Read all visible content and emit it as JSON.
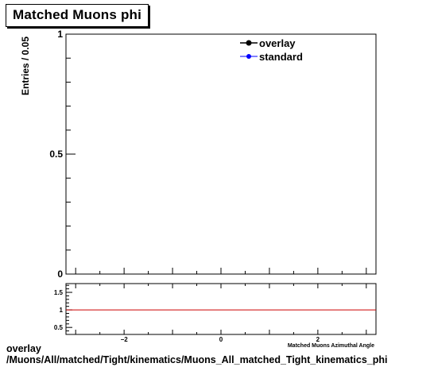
{
  "title": "Matched Muons phi",
  "footer": {
    "line1": "overlay",
    "line2": "/Muons/All/matched/Tight/kinematics/Muons_All_matched_Tight_kinematics_phi"
  },
  "colors": {
    "overlay": "#000000",
    "standard": "#0000ff",
    "ratio_line": "#cc0000"
  },
  "chart_data": [
    {
      "type": "line",
      "title": "Matched Muons phi",
      "xlabel": "Matched Muons Azimuthal Angle",
      "ylabel": "Entries / 0.05",
      "xlim": [
        -3.2,
        3.2
      ],
      "ylim": [
        0,
        1
      ],
      "y_ticks": [
        {
          "v": 0,
          "label": "0"
        },
        {
          "v": 0.5,
          "label": "0.5"
        },
        {
          "v": 1,
          "label": "1"
        }
      ],
      "legend_position": "top-right",
      "series": [
        {
          "name": "overlay",
          "x": [],
          "values": []
        },
        {
          "name": "standard",
          "x": [],
          "values": []
        }
      ]
    },
    {
      "type": "line",
      "xlim": [
        -3.2,
        3.2
      ],
      "ylim": [
        0.3,
        1.75
      ],
      "x_ticks": [
        {
          "v": -2,
          "label": "−2"
        },
        {
          "v": 0,
          "label": "0"
        },
        {
          "v": 2,
          "label": "2"
        }
      ],
      "y_ticks": [
        {
          "v": 0.5,
          "label": "0.5"
        },
        {
          "v": 1,
          "label": "1"
        },
        {
          "v": 1.5,
          "label": "1.5"
        }
      ],
      "reference_line": 1
    }
  ]
}
